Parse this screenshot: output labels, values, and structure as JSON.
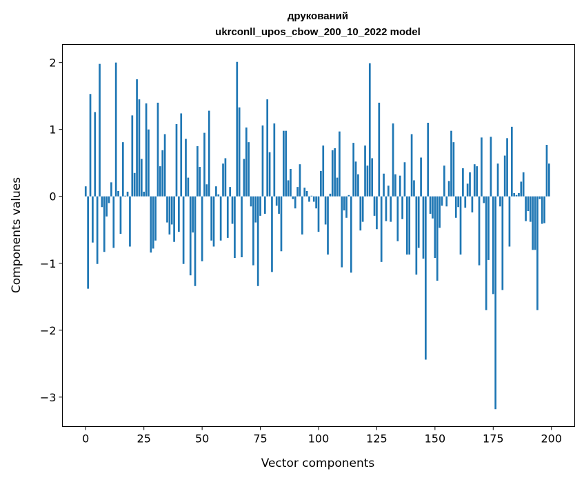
{
  "chart_data": {
    "type": "bar",
    "title": "друкований",
    "subtitle": "ukrconll_upos_cbow_200_10_2022 model",
    "xlabel": "Vector components",
    "ylabel": "Components values",
    "xlim": [
      -10,
      210
    ],
    "ylim": [
      -3.44,
      2.27
    ],
    "xticks": [
      0,
      25,
      50,
      75,
      100,
      125,
      150,
      175,
      200
    ],
    "xtick_labels": [
      "0",
      "25",
      "50",
      "75",
      "100",
      "125",
      "150",
      "175",
      "200"
    ],
    "yticks": [
      -3,
      -2,
      -1,
      0,
      1,
      2
    ],
    "ytick_labels": [
      "−3",
      "−2",
      "−1",
      "0",
      "1",
      "2"
    ],
    "grid": false,
    "bar_color": "#1f77b4",
    "values": [
      0.15,
      -1.38,
      1.53,
      -0.69,
      1.26,
      -1.01,
      1.98,
      -0.16,
      -0.83,
      -0.3,
      -0.1,
      0.21,
      -0.77,
      2.0,
      0.08,
      -0.56,
      0.81,
      0.01,
      0.07,
      -0.75,
      1.21,
      0.35,
      1.75,
      1.45,
      0.56,
      0.07,
      1.39,
      1.0,
      -0.84,
      -0.78,
      -0.66,
      1.4,
      0.45,
      0.69,
      0.93,
      -0.39,
      -0.57,
      -0.42,
      -0.68,
      1.08,
      -0.53,
      1.24,
      -1.01,
      0.86,
      0.28,
      -1.18,
      -0.54,
      -1.34,
      0.75,
      0.44,
      -0.97,
      0.95,
      0.18,
      1.28,
      -0.66,
      -0.75,
      0.15,
      0.03,
      -0.66,
      0.49,
      0.57,
      -0.62,
      0.14,
      -0.41,
      -0.92,
      2.01,
      1.33,
      -0.91,
      0.56,
      1.03,
      0.81,
      -0.15,
      -1.03,
      -0.39,
      -1.34,
      -0.29,
      1.06,
      -0.26,
      1.45,
      0.66,
      -1.13,
      1.09,
      -0.14,
      -0.26,
      -0.82,
      0.98,
      0.98,
      0.24,
      0.41,
      -0.04,
      -0.18,
      0.14,
      0.48,
      -0.57,
      0.13,
      0.08,
      -0.08,
      0.01,
      -0.08,
      -0.18,
      -0.53,
      0.38,
      0.76,
      -0.42,
      -0.87,
      0.04,
      0.69,
      0.72,
      0.28,
      0.97,
      -1.06,
      -0.21,
      -0.32,
      0.02,
      -1.14,
      0.8,
      0.52,
      0.33,
      -0.51,
      -0.38,
      0.76,
      0.46,
      1.99,
      0.57,
      -0.29,
      -0.49,
      1.4,
      -0.98,
      0.34,
      -0.37,
      0.16,
      -0.38,
      1.09,
      0.33,
      -0.67,
      0.31,
      -0.34,
      0.51,
      -0.87,
      -0.87,
      0.93,
      0.24,
      -1.17,
      -0.77,
      0.58,
      -0.93,
      -2.44,
      1.1,
      -0.26,
      -0.33,
      -0.92,
      -1.26,
      -0.47,
      -0.14,
      0.46,
      -0.15,
      0.23,
      0.98,
      0.81,
      -0.32,
      -0.16,
      -0.87,
      0.42,
      -0.17,
      0.19,
      0.36,
      -0.24,
      0.48,
      0.45,
      -1.03,
      0.88,
      -0.1,
      -1.7,
      -0.95,
      0.89,
      -1.46,
      -3.18,
      0.49,
      -0.15,
      -1.4,
      0.61,
      0.87,
      -0.75,
      1.04,
      0.05,
      0.02,
      0.05,
      0.22,
      0.36,
      -0.37,
      -0.22,
      -0.38,
      -0.8,
      -0.8,
      -1.7,
      -0.04,
      -0.41,
      -0.4,
      0.77,
      0.49
    ]
  }
}
